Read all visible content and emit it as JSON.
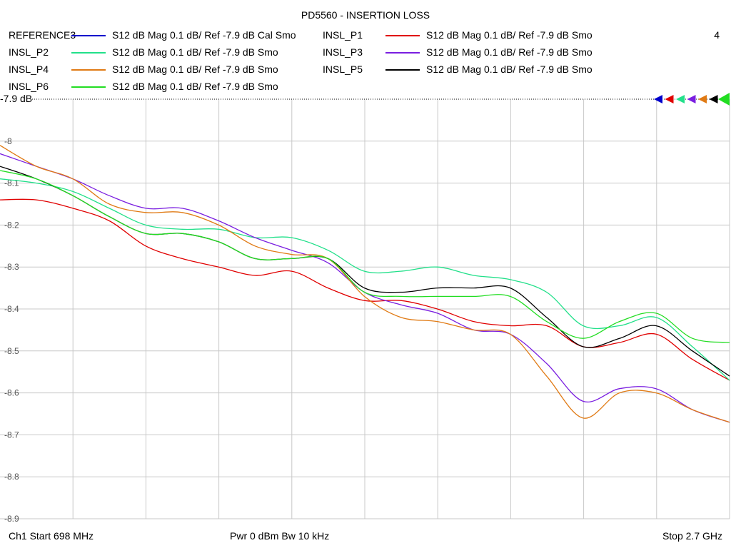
{
  "title": "PD5560 - INSERTION LOSS",
  "marker_count": "4",
  "ref_label": "-7.9 dB",
  "footer": {
    "start": "Ch1  Start  698 MHz",
    "power": "Pwr  0 dBm  Bw  10 kHz",
    "stop": "Stop  2.7 GHz"
  },
  "legend": [
    {
      "name": "REFERENCE3",
      "color": "#0000cc",
      "desc": "S12  dB Mag  0.1 dB/ Ref -7.9 dB  Cal Smo"
    },
    {
      "name": "INSL_P1",
      "color": "#e00000",
      "desc": "S12  dB Mag  0.1 dB/ Ref -7.9 dB  Smo"
    },
    {
      "name": "INSL_P2",
      "color": "#22e08a",
      "desc": "S12  dB Mag  0.1 dB/ Ref -7.9 dB  Smo"
    },
    {
      "name": "INSL_P3",
      "color": "#7a1ee0",
      "desc": "S12  dB Mag  0.1 dB/ Ref -7.9 dB  Smo"
    },
    {
      "name": "INSL_P4",
      "color": "#e07a14",
      "desc": "S12  dB Mag  0.1 dB/ Ref -7.9 dB  Smo"
    },
    {
      "name": "INSL_P5",
      "color": "#000000",
      "desc": "S12  dB Mag  0.1 dB/ Ref -7.9 dB  Smo"
    },
    {
      "name": "INSL_P6",
      "color": "#22dd22",
      "desc": "S12  dB Mag  0.1 dB/ Ref -7.9 dB  Smo"
    }
  ],
  "chart_data": {
    "type": "line",
    "title": "PD5560 - INSERTION LOSS",
    "xlabel": "",
    "ylabel": "",
    "xlim": [
      698,
      2700
    ],
    "x_unit": "MHz",
    "ylim": [
      -8.9,
      -7.9
    ],
    "y_ticks": [
      -8,
      -8.1,
      -8.2,
      -8.3,
      -8.4,
      -8.5,
      -8.6,
      -8.7,
      -8.8,
      -8.9
    ],
    "y_tick_labels": [
      "-8",
      "-8.1",
      "-8.2",
      "-8.3",
      "-8.4",
      "-8.5",
      "-8.6",
      "-8.7",
      "-8.8",
      "-8.9"
    ],
    "reference_level": -7.9,
    "grid": true,
    "x": [
      698,
      798,
      898,
      998,
      1098,
      1198,
      1298,
      1398,
      1498,
      1598,
      1698,
      1798,
      1898,
      1998,
      2098,
      2198,
      2298,
      2398,
      2498,
      2598,
      2700
    ],
    "series": [
      {
        "name": "INSL_P1",
        "color": "#e00000",
        "values": [
          -8.14,
          -8.14,
          -8.16,
          -8.19,
          -8.25,
          -8.28,
          -8.3,
          -8.32,
          -8.31,
          -8.35,
          -8.38,
          -8.38,
          -8.4,
          -8.43,
          -8.44,
          -8.44,
          -8.49,
          -8.48,
          -8.46,
          -8.52,
          -8.57
        ]
      },
      {
        "name": "INSL_P2",
        "color": "#22e08a",
        "values": [
          -8.09,
          -8.1,
          -8.12,
          -8.16,
          -8.2,
          -8.21,
          -8.21,
          -8.23,
          -8.23,
          -8.26,
          -8.31,
          -8.31,
          -8.3,
          -8.32,
          -8.33,
          -8.36,
          -8.44,
          -8.44,
          -8.42,
          -8.49,
          -8.57
        ]
      },
      {
        "name": "INSL_P3",
        "color": "#7a1ee0",
        "values": [
          -8.03,
          -8.06,
          -8.09,
          -8.13,
          -8.16,
          -8.16,
          -8.19,
          -8.23,
          -8.26,
          -8.29,
          -8.36,
          -8.39,
          -8.41,
          -8.45,
          -8.46,
          -8.53,
          -8.62,
          -8.59,
          -8.59,
          -8.64,
          -8.67
        ]
      },
      {
        "name": "INSL_P4",
        "color": "#e07a14",
        "values": [
          -8.01,
          -8.06,
          -8.09,
          -8.15,
          -8.17,
          -8.17,
          -8.2,
          -8.25,
          -8.27,
          -8.28,
          -8.37,
          -8.42,
          -8.43,
          -8.45,
          -8.46,
          -8.56,
          -8.66,
          -8.6,
          -8.6,
          -8.64,
          -8.67
        ]
      },
      {
        "name": "INSL_P5",
        "color": "#000000",
        "values": [
          -8.06,
          -8.09,
          -8.13,
          -8.18,
          -8.22,
          -8.22,
          -8.24,
          -8.28,
          -8.28,
          -8.28,
          -8.35,
          -8.36,
          -8.35,
          -8.35,
          -8.35,
          -8.42,
          -8.49,
          -8.47,
          -8.44,
          -8.5,
          -8.56
        ]
      },
      {
        "name": "INSL_P6",
        "color": "#22dd22",
        "values": [
          -8.07,
          -8.09,
          -8.13,
          -8.18,
          -8.22,
          -8.22,
          -8.24,
          -8.28,
          -8.28,
          -8.28,
          -8.36,
          -8.37,
          -8.37,
          -8.37,
          -8.37,
          -8.43,
          -8.47,
          -8.43,
          -8.41,
          -8.47,
          -8.48
        ]
      }
    ]
  }
}
